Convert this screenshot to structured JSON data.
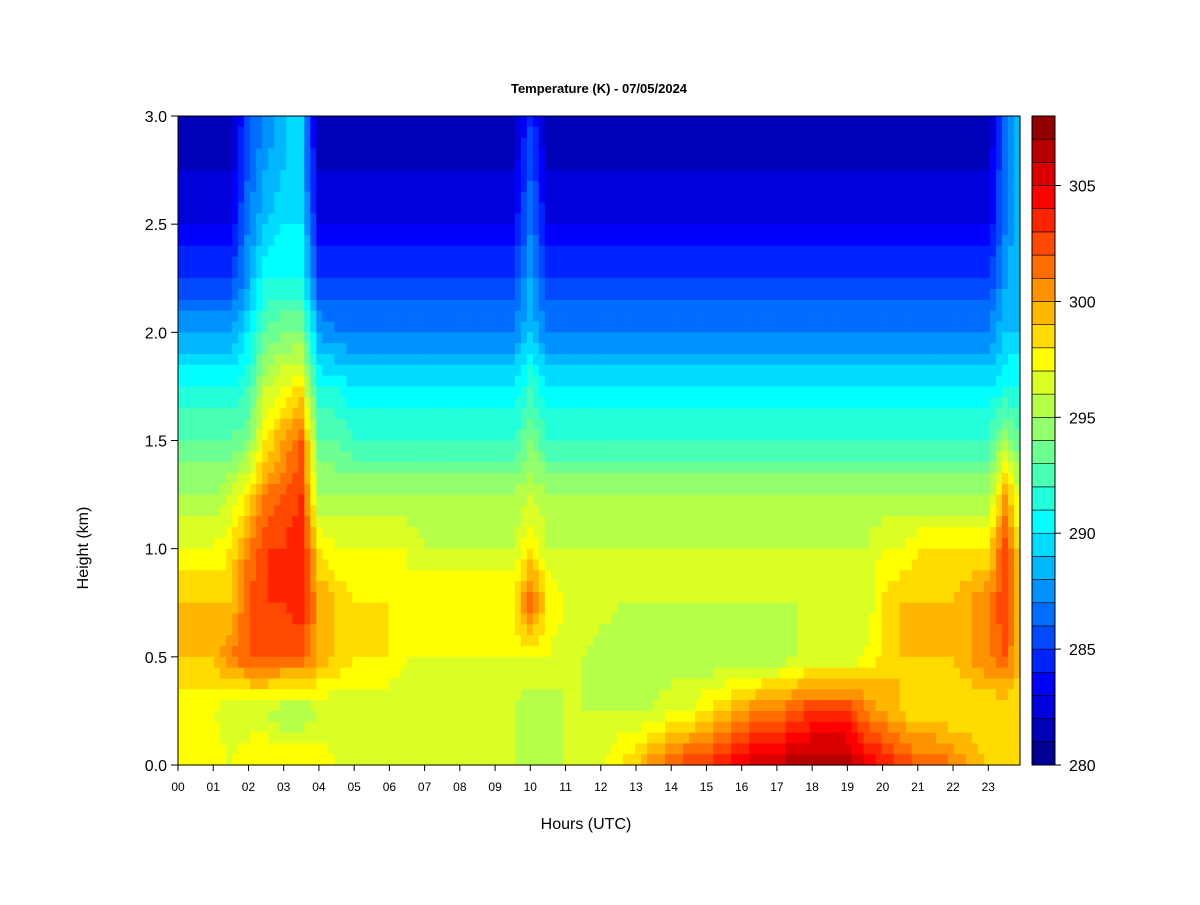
{
  "chart_data": {
    "type": "heatmap",
    "title": "Temperature (K) - 07/05/2024",
    "xlabel": "Hours (UTC)",
    "ylabel": "Height (km)",
    "x_tick_labels": [
      "00",
      "01",
      "02",
      "03",
      "04",
      "05",
      "06",
      "07",
      "08",
      "09",
      "10",
      "11",
      "12",
      "13",
      "14",
      "15",
      "16",
      "17",
      "18",
      "19",
      "20",
      "21",
      "22",
      "23"
    ],
    "x_tick_values": [
      0,
      1,
      2,
      3,
      4,
      5,
      6,
      7,
      8,
      9,
      10,
      11,
      12,
      13,
      14,
      15,
      16,
      17,
      18,
      19,
      20,
      21,
      22,
      23
    ],
    "xlim": [
      0,
      23.9
    ],
    "y_tick_labels": [
      "0.0",
      "0.5",
      "1.0",
      "1.5",
      "2.0",
      "2.5",
      "3.0"
    ],
    "y_tick_values": [
      0,
      0.5,
      1.0,
      1.5,
      2.0,
      2.5,
      3.0
    ],
    "ylim": [
      0,
      3.0
    ],
    "colorbar": {
      "tick_labels": [
        "280",
        "285",
        "290",
        "295",
        "300",
        "305"
      ],
      "tick_values": [
        280,
        285,
        290,
        295,
        300,
        305
      ],
      "range": [
        280,
        308
      ],
      "levels": 28,
      "colormap": "jet"
    },
    "grid": false,
    "grid_x": [
      0,
      0.5,
      1,
      1.5,
      2,
      2.5,
      3,
      3.5,
      4,
      4.5,
      5,
      5.5,
      6,
      6.5,
      7,
      7.5,
      8,
      8.5,
      9,
      9.5,
      10,
      10.5,
      11,
      11.5,
      12,
      12.5,
      13,
      13.5,
      14,
      14.5,
      15,
      15.5,
      16,
      16.5,
      17,
      17.5,
      18,
      18.5,
      19,
      19.5,
      20,
      20.5,
      21,
      21.5,
      22,
      22.5,
      23,
      23.5,
      23.9
    ],
    "grid_y": [
      0,
      0.25,
      0.5,
      0.75,
      1.0,
      1.25,
      1.5,
      1.75,
      2.0,
      2.25,
      2.5,
      2.75,
      3.0
    ],
    "values": [
      [
        297,
        297,
        298,
        297,
        298,
        298,
        298,
        298,
        298,
        297,
        297,
        297,
        296,
        296,
        296,
        297,
        297,
        297,
        296,
        296,
        296,
        296,
        296,
        297,
        297,
        298,
        299,
        301,
        302,
        303,
        303,
        304,
        305,
        306,
        306,
        307,
        307,
        307,
        307,
        305,
        304,
        303,
        302,
        302,
        301,
        300,
        299,
        298,
        298
      ],
      [
        297,
        297,
        297,
        296,
        296,
        296,
        295,
        295,
        296,
        296,
        296,
        296,
        296,
        296,
        296,
        296,
        296,
        296,
        296,
        296,
        295,
        295,
        296,
        296,
        296,
        296,
        296,
        296,
        297,
        297,
        298,
        299,
        300,
        301,
        301,
        302,
        303,
        303,
        303,
        301,
        300,
        299,
        298,
        298,
        298,
        298,
        298,
        298,
        298
      ],
      [
        299,
        299,
        299,
        301,
        302,
        302,
        302,
        302,
        300,
        299,
        298,
        298,
        298,
        297,
        297,
        297,
        297,
        297,
        297,
        297,
        297,
        297,
        296,
        296,
        295,
        295,
        295,
        295,
        295,
        295,
        295,
        295,
        295,
        295,
        295,
        296,
        296,
        296,
        296,
        297,
        298,
        299,
        299,
        299,
        299,
        300,
        301,
        302,
        299
      ],
      [
        299,
        299,
        299,
        299,
        302,
        303,
        303,
        304,
        300,
        299,
        298,
        298,
        298,
        297,
        298,
        298,
        298,
        298,
        298,
        298,
        302,
        298,
        297,
        297,
        297,
        296,
        296,
        296,
        296,
        296,
        296,
        296,
        296,
        296,
        296,
        296,
        296,
        296,
        296,
        296,
        298,
        299,
        299,
        299,
        299,
        300,
        301,
        303,
        299
      ],
      [
        297,
        297,
        297,
        298,
        301,
        303,
        303,
        304,
        298,
        297,
        297,
        297,
        297,
        297,
        296,
        296,
        296,
        296,
        296,
        296,
        298,
        296,
        296,
        296,
        296,
        296,
        296,
        296,
        296,
        296,
        296,
        296,
        296,
        296,
        296,
        296,
        296,
        296,
        296,
        296,
        297,
        297,
        298,
        298,
        298,
        298,
        298,
        303,
        298
      ],
      [
        295,
        295,
        295,
        296,
        298,
        301,
        302,
        303,
        295,
        295,
        295,
        295,
        295,
        295,
        295,
        295,
        295,
        295,
        295,
        295,
        296,
        295,
        295,
        295,
        295,
        295,
        295,
        295,
        295,
        295,
        295,
        295,
        295,
        295,
        295,
        295,
        295,
        295,
        295,
        295,
        295,
        295,
        295,
        295,
        295,
        295,
        295,
        300,
        296
      ],
      [
        293,
        293,
        293,
        293,
        294,
        298,
        300,
        302,
        293,
        293,
        292,
        292,
        292,
        292,
        292,
        292,
        292,
        292,
        292,
        292,
        294,
        292,
        292,
        292,
        292,
        292,
        292,
        292,
        292,
        292,
        292,
        292,
        292,
        292,
        292,
        292,
        292,
        292,
        292,
        292,
        292,
        292,
        292,
        292,
        292,
        292,
        292,
        295,
        293
      ],
      [
        291,
        291,
        291,
        291,
        292,
        296,
        297,
        298,
        291,
        291,
        290,
        290,
        290,
        290,
        290,
        290,
        290,
        290,
        290,
        290,
        292,
        290,
        290,
        290,
        290,
        290,
        290,
        290,
        290,
        290,
        290,
        290,
        290,
        290,
        290,
        290,
        290,
        290,
        290,
        290,
        290,
        290,
        290,
        290,
        290,
        290,
        290,
        291,
        291
      ],
      [
        288,
        288,
        288,
        288,
        290,
        293,
        294,
        294,
        288,
        287,
        287,
        287,
        287,
        287,
        287,
        287,
        287,
        287,
        287,
        287,
        289,
        287,
        287,
        287,
        287,
        287,
        287,
        287,
        287,
        287,
        287,
        287,
        287,
        287,
        287,
        287,
        287,
        287,
        287,
        287,
        287,
        287,
        287,
        287,
        287,
        287,
        287,
        289,
        289
      ],
      [
        285,
        285,
        285,
        285,
        288,
        291,
        291,
        291,
        285,
        285,
        285,
        285,
        285,
        285,
        285,
        285,
        285,
        285,
        285,
        285,
        288,
        285,
        285,
        285,
        285,
        285,
        285,
        285,
        285,
        285,
        285,
        285,
        285,
        285,
        285,
        285,
        285,
        285,
        285,
        285,
        285,
        285,
        285,
        285,
        285,
        285,
        285,
        288,
        289
      ],
      [
        283,
        283,
        283,
        283,
        287,
        289,
        290,
        290,
        283,
        283,
        283,
        283,
        283,
        283,
        283,
        283,
        283,
        283,
        283,
        283,
        287,
        283,
        283,
        283,
        283,
        283,
        283,
        283,
        283,
        283,
        283,
        283,
        283,
        283,
        283,
        283,
        283,
        283,
        283,
        283,
        283,
        283,
        283,
        283,
        283,
        283,
        283,
        287,
        289
      ],
      [
        282,
        282,
        282,
        282,
        286,
        288,
        289,
        289,
        282,
        282,
        282,
        282,
        282,
        282,
        282,
        282,
        282,
        282,
        282,
        282,
        286,
        282,
        282,
        282,
        282,
        282,
        282,
        282,
        282,
        282,
        282,
        282,
        282,
        282,
        282,
        282,
        282,
        282,
        282,
        282,
        282,
        282,
        282,
        282,
        282,
        282,
        282,
        287,
        289
      ],
      [
        281,
        281,
        281,
        281,
        286,
        287,
        289,
        289,
        281,
        281,
        281,
        281,
        281,
        281,
        281,
        281,
        281,
        281,
        281,
        281,
        285,
        281,
        281,
        281,
        281,
        281,
        281,
        281,
        281,
        281,
        281,
        281,
        281,
        281,
        281,
        281,
        281,
        281,
        281,
        281,
        281,
        281,
        281,
        281,
        281,
        281,
        281,
        287,
        289
      ]
    ]
  }
}
